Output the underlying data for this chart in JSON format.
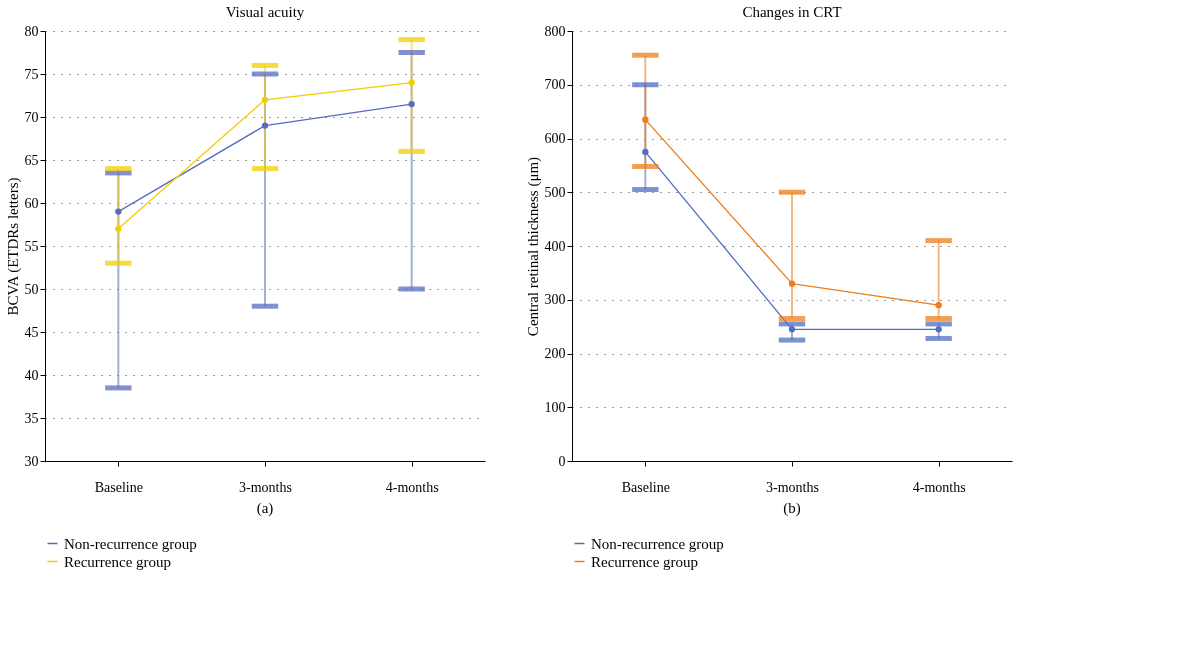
{
  "chart_data": [
    {
      "type": "line",
      "title": "Visual acuity",
      "ylabel": "BCVA (ETDRs letters)",
      "categories": [
        "Baseline",
        "3-months",
        "4-months"
      ],
      "series": [
        {
          "name": "Non-recurrence group",
          "color": "#5a6bbf",
          "values": [
            59,
            69,
            71.5
          ],
          "errors": [
            [
              38.5,
              63.5
            ],
            [
              48,
              75
            ],
            [
              50,
              77.5
            ]
          ]
        },
        {
          "name": "Recurrence group",
          "color": "#f2cd00",
          "values": [
            57,
            72,
            74
          ],
          "errors": [
            [
              53,
              64
            ],
            [
              64,
              76
            ],
            [
              66,
              79
            ]
          ]
        }
      ],
      "ylim": [
        30,
        80
      ],
      "yticks": [
        30,
        35,
        40,
        45,
        50,
        55,
        60,
        65,
        70,
        75,
        80
      ],
      "grid": "y",
      "legend": "bottom",
      "marker": "circle",
      "line_style": "solid",
      "annotations": [
        "(a)"
      ]
    },
    {
      "type": "line",
      "title": "Changes in CRT",
      "ylabel": "Central retinal thickness (μm)",
      "categories": [
        "Baseline",
        "3-months",
        "4-months"
      ],
      "series": [
        {
          "name": "Non-recurrence group",
          "color": "#4f6fc0",
          "values": [
            575,
            245,
            245
          ],
          "errors": [
            [
              505,
              700
            ],
            [
              225,
              255
            ],
            [
              228,
              255
            ]
          ]
        },
        {
          "name": "Recurrence group",
          "color": "#ee7d1a",
          "values": [
            635,
            330,
            290
          ],
          "errors": [
            [
              548,
              755
            ],
            [
              265,
              500
            ],
            [
              265,
              410
            ]
          ]
        }
      ],
      "ylim": [
        0,
        800
      ],
      "yticks": [
        0,
        100,
        200,
        300,
        400,
        500,
        600,
        700,
        800
      ],
      "grid": "y",
      "legend": "bottom",
      "marker": "circle",
      "line_style": "solid",
      "annotations": [
        "(b)"
      ]
    }
  ]
}
